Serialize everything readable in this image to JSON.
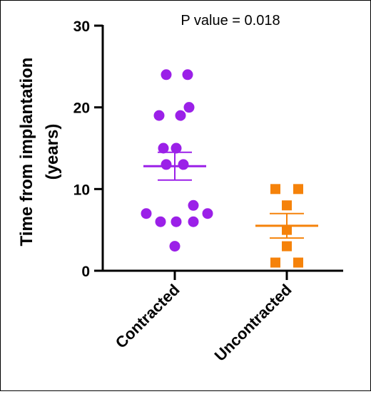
{
  "chart_data": {
    "type": "scatter",
    "annotation": "P value = 0.018",
    "ylabel_lines": [
      "Time from implantation",
      "(years)"
    ],
    "xlabel": "",
    "ylim": [
      0,
      30
    ],
    "yticks": [
      0,
      10,
      20,
      30
    ],
    "ytick_labels": [
      "0",
      "10",
      "20",
      "30"
    ],
    "grid": false,
    "categories": [
      "Contracted",
      "Uncontracted"
    ],
    "series": [
      {
        "category": "Contracted",
        "color": "#9b20e8",
        "marker": "circle",
        "values": [
          24,
          24,
          19,
          19,
          20,
          15,
          15,
          13,
          13,
          7,
          6,
          6,
          6,
          7,
          8,
          3
        ],
        "mean": 12.8,
        "sem": 1.7
      },
      {
        "category": "Uncontracted",
        "color": "#f5820a",
        "marker": "square",
        "values": [
          10,
          10,
          8,
          5,
          3,
          1,
          1
        ],
        "mean": 5.5,
        "sem": 1.5
      }
    ]
  }
}
